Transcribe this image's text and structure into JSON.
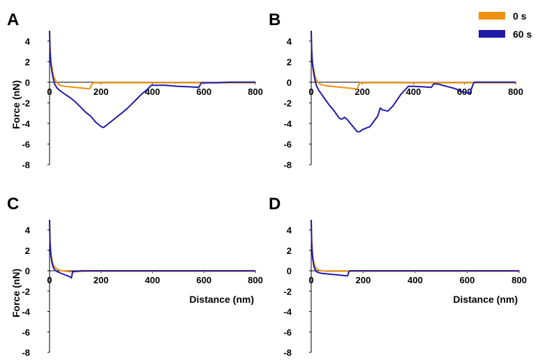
{
  "colors": {
    "s0": "#F0900F",
    "s60": "#1F1AA8",
    "axis": "#000000"
  },
  "legend": [
    {
      "name": "0 s",
      "color": "#F0900F"
    },
    {
      "name": "60 s",
      "color": "#1F1AA8"
    }
  ],
  "chart_data": [
    {
      "panel": "A",
      "type": "line",
      "xlabel": "",
      "ylabel": "Force (nN)",
      "xlim": [
        0,
        800
      ],
      "ylim": [
        -8,
        5
      ],
      "xticks": [
        "0",
        "200",
        "400",
        "600",
        "800"
      ],
      "yticks": [
        "4",
        "2",
        "0",
        "-2",
        "-4",
        "-6",
        "-8"
      ],
      "series": [
        {
          "name": "0 s",
          "color": "#F0900F",
          "x": [
            0,
            2,
            5,
            10,
            15,
            20,
            30,
            40,
            60,
            80,
            100,
            120,
            140,
            155,
            165,
            170,
            200,
            300,
            400,
            500,
            600,
            700,
            800
          ],
          "y": [
            5,
            3.5,
            2.2,
            1.3,
            0.7,
            0.3,
            -0.1,
            -0.3,
            -0.4,
            -0.45,
            -0.5,
            -0.55,
            -0.6,
            -0.65,
            -0.2,
            -0.05,
            -0.05,
            -0.05,
            -0.05,
            -0.05,
            -0.05,
            -0.05,
            -0.05
          ]
        },
        {
          "name": "60 s",
          "color": "#1F1AA8",
          "x": [
            0,
            2,
            5,
            10,
            15,
            20,
            30,
            50,
            80,
            100,
            120,
            140,
            160,
            180,
            200,
            210,
            220,
            240,
            260,
            280,
            300,
            320,
            340,
            360,
            380,
            395,
            400,
            450,
            500,
            550,
            580,
            590,
            650,
            700,
            750,
            800
          ],
          "y": [
            5,
            3,
            1.8,
            0.9,
            0.3,
            -0.2,
            -0.6,
            -1.0,
            -1.5,
            -1.9,
            -2.4,
            -2.9,
            -3.3,
            -3.9,
            -4.3,
            -4.4,
            -4.2,
            -3.8,
            -3.4,
            -3.0,
            -2.6,
            -2.1,
            -1.6,
            -1.1,
            -0.7,
            -0.3,
            -0.3,
            -0.3,
            -0.4,
            -0.45,
            -0.5,
            -0.05,
            -0.05,
            0,
            0,
            0
          ]
        }
      ]
    },
    {
      "panel": "B",
      "type": "line",
      "xlabel": "",
      "ylabel": "",
      "xlim": [
        0,
        800
      ],
      "ylim": [
        -8,
        5
      ],
      "xticks": [
        "0",
        "200",
        "400",
        "600",
        "800"
      ],
      "yticks": [
        "4",
        "2",
        "0",
        "-2",
        "-4",
        "-6",
        "-8"
      ],
      "series": [
        {
          "name": "0 s",
          "color": "#F0900F",
          "x": [
            0,
            2,
            5,
            10,
            15,
            20,
            30,
            40,
            60,
            80,
            100,
            120,
            140,
            160,
            180,
            185,
            190,
            250,
            300,
            400,
            500,
            600,
            700,
            800
          ],
          "y": [
            5,
            3.2,
            2.0,
            1.2,
            0.6,
            0.2,
            -0.1,
            -0.25,
            -0.35,
            -0.4,
            -0.45,
            -0.5,
            -0.55,
            -0.6,
            -0.65,
            -0.3,
            -0.05,
            -0.05,
            -0.05,
            -0.05,
            -0.05,
            -0.05,
            -0.05,
            -0.05
          ]
        },
        {
          "name": "60 s",
          "color": "#1F1AA8",
          "x": [
            0,
            2,
            5,
            10,
            15,
            20,
            30,
            50,
            70,
            90,
            110,
            120,
            130,
            140,
            160,
            180,
            190,
            200,
            230,
            260,
            270,
            280,
            300,
            320,
            350,
            380,
            400,
            440,
            470,
            480,
            500,
            530,
            560,
            590,
            620,
            635,
            640,
            700,
            750,
            800
          ],
          "y": [
            5,
            3,
            1.7,
            0.8,
            0.2,
            -0.3,
            -0.8,
            -1.5,
            -2.2,
            -2.8,
            -3.5,
            -3.6,
            -3.4,
            -3.6,
            -4.2,
            -4.8,
            -4.8,
            -4.6,
            -4.3,
            -3.3,
            -2.5,
            -2.7,
            -2.8,
            -2.3,
            -1.2,
            -0.4,
            -0.4,
            -0.45,
            -0.5,
            -0.15,
            -0.2,
            -0.4,
            -0.6,
            -0.9,
            -1.1,
            -0.1,
            0,
            0,
            0,
            0
          ]
        }
      ]
    },
    {
      "panel": "C",
      "type": "line",
      "xlabel": "Distance (nm)",
      "ylabel": "Force (nN)",
      "xlim": [
        0,
        800
      ],
      "ylim": [
        -8,
        5
      ],
      "xticks": [
        "0",
        "200",
        "400",
        "600",
        "800"
      ],
      "yticks": [
        "4",
        "2",
        "0",
        "-2",
        "-4",
        "-6",
        "-8"
      ],
      "series": [
        {
          "name": "0 s",
          "color": "#F0900F",
          "x": [
            0,
            2,
            5,
            10,
            15,
            20,
            30,
            40,
            50,
            60,
            80,
            100,
            150,
            200,
            400,
            600,
            800
          ],
          "y": [
            5,
            3,
            1.8,
            1.0,
            0.6,
            0.35,
            0.15,
            0.05,
            0,
            -0.05,
            -0.1,
            -0.1,
            -0.05,
            -0.05,
            -0.05,
            -0.05,
            -0.05
          ]
        },
        {
          "name": "60 s",
          "color": "#1F1AA8",
          "x": [
            0,
            2,
            5,
            10,
            15,
            20,
            30,
            40,
            50,
            60,
            70,
            80,
            85,
            90,
            120,
            200,
            400,
            600,
            800
          ],
          "y": [
            5,
            2.8,
            1.5,
            0.7,
            0.3,
            0.1,
            -0.1,
            -0.2,
            -0.3,
            -0.4,
            -0.5,
            -0.6,
            -0.7,
            -0.1,
            0,
            0,
            0,
            0,
            0
          ]
        }
      ]
    },
    {
      "panel": "D",
      "type": "line",
      "xlabel": "Distance (nm)",
      "ylabel": "",
      "xlim": [
        0,
        800
      ],
      "ylim": [
        -8,
        5
      ],
      "xticks": [
        "0",
        "200",
        "400",
        "600",
        "800"
      ],
      "yticks": [
        "4",
        "2",
        "0",
        "-2",
        "-4",
        "-6",
        "-8"
      ],
      "series": [
        {
          "name": "0 s",
          "color": "#F0900F",
          "x": [
            0,
            2,
            5,
            10,
            15,
            20,
            30,
            40,
            60,
            80,
            100,
            150,
            200,
            400,
            600,
            800
          ],
          "y": [
            5,
            3,
            1.6,
            0.8,
            0.4,
            0.2,
            0.05,
            0,
            -0.05,
            -0.05,
            -0.05,
            -0.05,
            -0.05,
            -0.05,
            -0.05,
            -0.05
          ]
        },
        {
          "name": "60 s",
          "color": "#1F1AA8",
          "x": [
            0,
            2,
            5,
            10,
            15,
            20,
            30,
            40,
            60,
            80,
            100,
            120,
            140,
            145,
            150,
            200,
            400,
            600,
            800
          ],
          "y": [
            5,
            2.6,
            1.3,
            0.5,
            0.1,
            -0.1,
            -0.2,
            -0.25,
            -0.3,
            -0.35,
            -0.4,
            -0.45,
            -0.5,
            -0.1,
            0,
            0,
            0,
            0,
            0
          ]
        }
      ]
    }
  ]
}
